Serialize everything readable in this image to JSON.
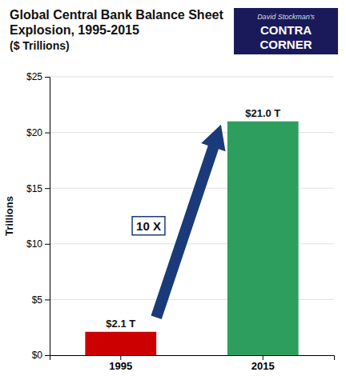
{
  "chart_data": {
    "type": "bar",
    "title": "Global Central Bank Balance Sheet Explosion, 1995-2015",
    "subtitle": "($ Trillions)",
    "categories": [
      "1995",
      "2015"
    ],
    "values": [
      2.1,
      21.0
    ],
    "value_labels": [
      "$2.1 T",
      "$21.0 T"
    ],
    "data_labels": true,
    "colors": [
      "#cc0000",
      "#2e9e5e"
    ],
    "ylabel": "Trillions",
    "ylim": [
      0,
      25
    ],
    "yticks": [
      {
        "value": 0,
        "label": "$0"
      },
      {
        "value": 5,
        "label": "$5"
      },
      {
        "value": 10,
        "label": "$10"
      },
      {
        "value": 15,
        "label": "$15"
      },
      {
        "value": 20,
        "label": "$20"
      },
      {
        "value": 25,
        "label": "$25"
      }
    ],
    "grid": true,
    "annotations": [
      "10 X",
      "David Stockman's",
      "CONTRA",
      "CORNER"
    ]
  }
}
